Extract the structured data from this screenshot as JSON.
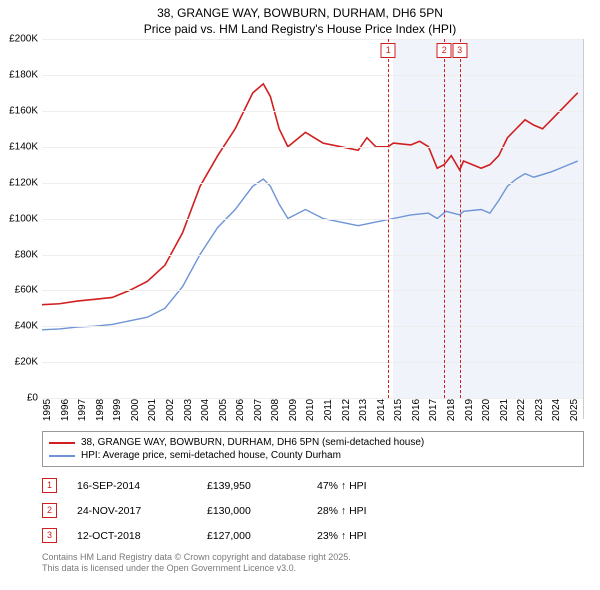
{
  "title": {
    "line1": "38, GRANGE WAY, BOWBURN, DURHAM, DH6 5PN",
    "line2": "Price paid vs. HM Land Registry's House Price Index (HPI)",
    "fontsize": 12
  },
  "chart": {
    "type": "line",
    "background_color": "#ffffff",
    "grid_color": "#eeeeee",
    "axis_color": "#999999",
    "x": {
      "min": 1995,
      "max": 2025.8,
      "ticks": [
        1995,
        1996,
        1997,
        1998,
        1999,
        2000,
        2001,
        2002,
        2003,
        2004,
        2005,
        2006,
        2007,
        2008,
        2009,
        2010,
        2011,
        2012,
        2013,
        2014,
        2015,
        2016,
        2017,
        2018,
        2019,
        2020,
        2021,
        2022,
        2023,
        2024,
        2025
      ],
      "tick_fontsize": 10
    },
    "y": {
      "min": 0,
      "max": 200000,
      "ticks": [
        0,
        20000,
        40000,
        60000,
        80000,
        100000,
        120000,
        140000,
        160000,
        180000,
        200000
      ],
      "tick_labels": [
        "£0",
        "£20K",
        "£40K",
        "£60K",
        "£80K",
        "£100K",
        "£120K",
        "£140K",
        "£160K",
        "£180K",
        "£200K"
      ],
      "tick_fontsize": 10
    },
    "shaded_band": {
      "from": 2015.0,
      "to": 2025.8,
      "fill": "rgba(130,160,210,0.12)"
    },
    "series": [
      {
        "name": "price_paid",
        "label": "38, GRANGE WAY, BOWBURN, DURHAM, DH6 5PN (semi-detached house)",
        "color": "#d11f1f",
        "line_width": 1.6,
        "points": [
          [
            1995,
            52000
          ],
          [
            1996,
            52500
          ],
          [
            1997,
            54000
          ],
          [
            1998,
            55000
          ],
          [
            1999,
            56000
          ],
          [
            2000,
            60000
          ],
          [
            2001,
            65000
          ],
          [
            2002,
            74000
          ],
          [
            2003,
            92000
          ],
          [
            2004,
            118000
          ],
          [
            2005,
            135000
          ],
          [
            2006,
            150000
          ],
          [
            2007,
            170000
          ],
          [
            2007.6,
            175000
          ],
          [
            2008,
            168000
          ],
          [
            2008.5,
            150000
          ],
          [
            2009,
            140000
          ],
          [
            2010,
            148000
          ],
          [
            2011,
            142000
          ],
          [
            2012,
            140000
          ],
          [
            2013,
            138000
          ],
          [
            2013.5,
            145000
          ],
          [
            2014,
            140000
          ],
          [
            2014.7,
            139950
          ],
          [
            2015,
            142000
          ],
          [
            2016,
            141000
          ],
          [
            2016.5,
            143000
          ],
          [
            2017,
            140000
          ],
          [
            2017.5,
            128000
          ],
          [
            2017.9,
            130000
          ],
          [
            2018.3,
            135000
          ],
          [
            2018.78,
            127000
          ],
          [
            2019,
            132000
          ],
          [
            2019.5,
            130000
          ],
          [
            2020,
            128000
          ],
          [
            2020.5,
            130000
          ],
          [
            2021,
            135000
          ],
          [
            2021.5,
            145000
          ],
          [
            2022,
            150000
          ],
          [
            2022.5,
            155000
          ],
          [
            2023,
            152000
          ],
          [
            2023.5,
            150000
          ],
          [
            2024,
            155000
          ],
          [
            2024.5,
            160000
          ],
          [
            2025,
            165000
          ],
          [
            2025.5,
            170000
          ]
        ]
      },
      {
        "name": "hpi",
        "label": "HPI: Average price, semi-detached house, County Durham",
        "color": "#6e94d6",
        "line_width": 1.4,
        "points": [
          [
            1995,
            38000
          ],
          [
            1996,
            38500
          ],
          [
            1997,
            39500
          ],
          [
            1998,
            40000
          ],
          [
            1999,
            41000
          ],
          [
            2000,
            43000
          ],
          [
            2001,
            45000
          ],
          [
            2002,
            50000
          ],
          [
            2003,
            62000
          ],
          [
            2004,
            80000
          ],
          [
            2005,
            95000
          ],
          [
            2006,
            105000
          ],
          [
            2007,
            118000
          ],
          [
            2007.6,
            122000
          ],
          [
            2008,
            118000
          ],
          [
            2008.5,
            108000
          ],
          [
            2009,
            100000
          ],
          [
            2010,
            105000
          ],
          [
            2011,
            100000
          ],
          [
            2012,
            98000
          ],
          [
            2013,
            96000
          ],
          [
            2014,
            98000
          ],
          [
            2015,
            100000
          ],
          [
            2016,
            102000
          ],
          [
            2017,
            103000
          ],
          [
            2017.5,
            100000
          ],
          [
            2018,
            104000
          ],
          [
            2018.78,
            102000
          ],
          [
            2019,
            104000
          ],
          [
            2020,
            105000
          ],
          [
            2020.5,
            103000
          ],
          [
            2021,
            110000
          ],
          [
            2021.5,
            118000
          ],
          [
            2022,
            122000
          ],
          [
            2022.5,
            125000
          ],
          [
            2023,
            123000
          ],
          [
            2024,
            126000
          ],
          [
            2024.5,
            128000
          ],
          [
            2025,
            130000
          ],
          [
            2025.5,
            132000
          ]
        ]
      }
    ],
    "events": [
      {
        "n": "1",
        "year": 2014.71,
        "color": "#d11f1f"
      },
      {
        "n": "2",
        "year": 2017.9,
        "color": "#d11f1f"
      },
      {
        "n": "3",
        "year": 2018.78,
        "color": "#d11f1f"
      }
    ]
  },
  "legend": {
    "items": [
      {
        "color": "#d11f1f",
        "label": "38, GRANGE WAY, BOWBURN, DURHAM, DH6 5PN (semi-detached house)"
      },
      {
        "color": "#6e94d6",
        "label": "HPI: Average price, semi-detached house, County Durham"
      }
    ]
  },
  "events_table": [
    {
      "n": "1",
      "color": "#d11f1f",
      "date": "16-SEP-2014",
      "price": "£139,950",
      "pct": "47% ↑ HPI"
    },
    {
      "n": "2",
      "color": "#d11f1f",
      "date": "24-NOV-2017",
      "price": "£130,000",
      "pct": "28% ↑ HPI"
    },
    {
      "n": "3",
      "color": "#d11f1f",
      "date": "12-OCT-2018",
      "price": "£127,000",
      "pct": "23% ↑ HPI"
    }
  ],
  "attribution": {
    "line1": "Contains HM Land Registry data © Crown copyright and database right 2025.",
    "line2": "This data is licensed under the Open Government Licence v3.0."
  }
}
